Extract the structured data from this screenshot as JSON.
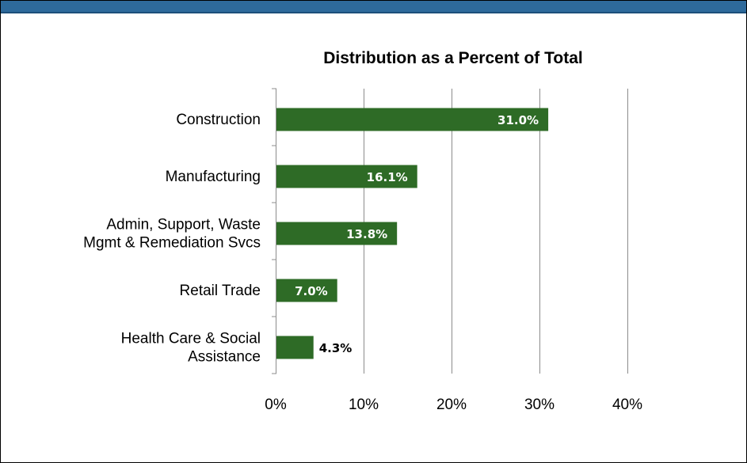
{
  "chart_data": {
    "type": "bar",
    "orientation": "horizontal",
    "title": "Distribution as a Percent of Total",
    "categories": [
      "Construction",
      "Manufacturing",
      "Admin, Support, Waste Mgmt & Remediation Svcs",
      "Retail Trade",
      "Health Care & Social Assistance"
    ],
    "category_lines": [
      [
        "Construction"
      ],
      [
        "Manufacturing"
      ],
      [
        "Admin, Support, Waste",
        "Mgmt & Remediation Svcs"
      ],
      [
        "Retail Trade"
      ],
      [
        "Health Care & Social",
        "Assistance"
      ]
    ],
    "values": [
      31.0,
      16.1,
      13.8,
      7.0,
      4.3
    ],
    "data_labels": [
      "31.0%",
      "16.1%",
      "13.8%",
      "7.0%",
      "4.3%"
    ],
    "xlim": [
      0,
      40
    ],
    "xticks": [
      0,
      10,
      20,
      30,
      40
    ],
    "xtick_labels": [
      "0%",
      "10%",
      "20%",
      "30%",
      "40%"
    ],
    "grid": true,
    "legend": "none",
    "colors": {
      "bar": "#2e6b26",
      "header_band": "#2e6a9b",
      "gridline": "#8c8c8c",
      "label_inside": "#ffffff",
      "label_outside": "#000000"
    }
  }
}
